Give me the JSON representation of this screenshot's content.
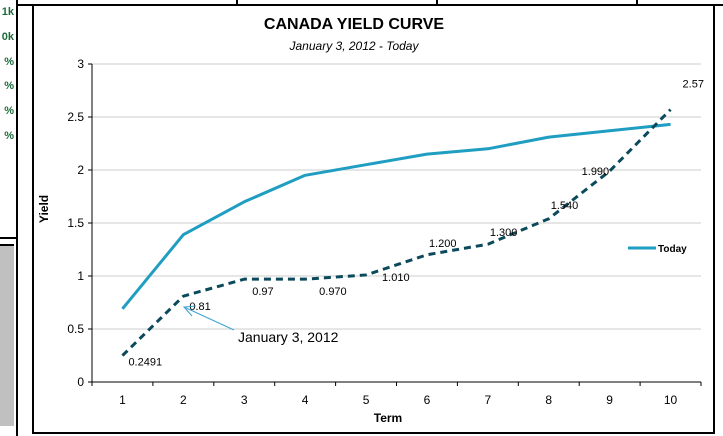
{
  "left_values": [
    "1k",
    "0k",
    "%",
    "%",
    "%",
    "%"
  ],
  "colors": {
    "today": "#1f9ec2",
    "past": "#0b4a5a",
    "green_text": "#1e6b3a",
    "annotation_arrow": "#3aa4d0"
  },
  "chart_data": {
    "type": "line",
    "title": "CANADA YIELD CURVE",
    "subtitle": "January 3, 2012  - Today",
    "xlabel": "Term",
    "ylabel": "Yield",
    "categories": [
      "1",
      "2",
      "3",
      "4",
      "5",
      "6",
      "7",
      "8",
      "9",
      "10"
    ],
    "ylim": [
      0,
      3
    ],
    "yticks": [
      "0",
      "0.5",
      "1",
      "1.5",
      "2",
      "2.5",
      "3"
    ],
    "grid": true,
    "legend_position": "right",
    "series": [
      {
        "name": "Today",
        "style": "solid",
        "values": [
          0.69,
          1.39,
          1.7,
          1.95,
          2.05,
          2.15,
          2.2,
          2.31,
          2.37,
          2.43
        ]
      },
      {
        "name": "",
        "style": "dashed",
        "values": [
          0.2491,
          0.81,
          0.97,
          0.97,
          1.01,
          1.2,
          1.3,
          1.54,
          1.99,
          2.57
        ],
        "labels": [
          "0.2491",
          "0.81",
          "0.97",
          "0.970",
          "1.010",
          "1.200",
          "1.300",
          "1.540",
          "1.990",
          "2.57"
        ]
      }
    ],
    "annotation": "January 3, 2012"
  }
}
